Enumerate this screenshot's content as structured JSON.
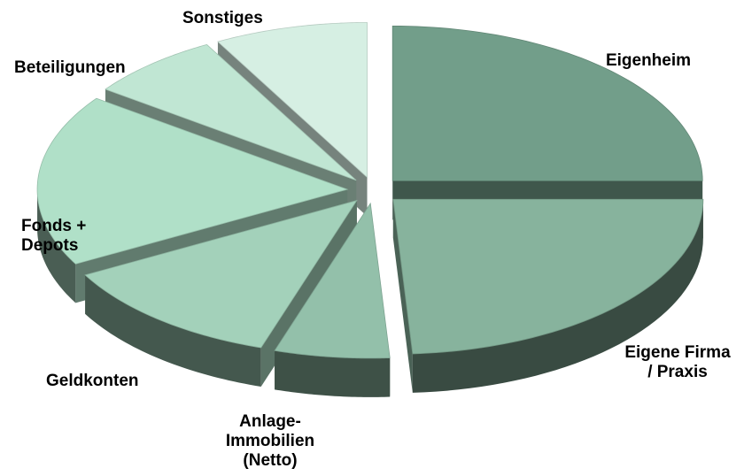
{
  "chart_data": {
    "type": "pie",
    "title": "",
    "style": "3d-exploded",
    "slices": [
      {
        "label": "Eigenheim",
        "value": 25,
        "color": "#729e8a"
      },
      {
        "label": "Eigene Firma\n/ Praxis",
        "value": 24,
        "color": "#87b39d"
      },
      {
        "label": "Anlage-\nImmobilien\n(Netto)",
        "value": 6,
        "color": "#93c0aa"
      },
      {
        "label": "Geldkonten",
        "value": 12,
        "color": "#a3d1ba"
      },
      {
        "label": "Fonds +\nDepots",
        "value": 18,
        "color": "#b0e0c8"
      },
      {
        "label": "Beteiligungen",
        "value": 7,
        "color": "#c0e6d3"
      },
      {
        "label": "Sonstiges",
        "value": 8,
        "color": "#d6efe3"
      }
    ]
  }
}
